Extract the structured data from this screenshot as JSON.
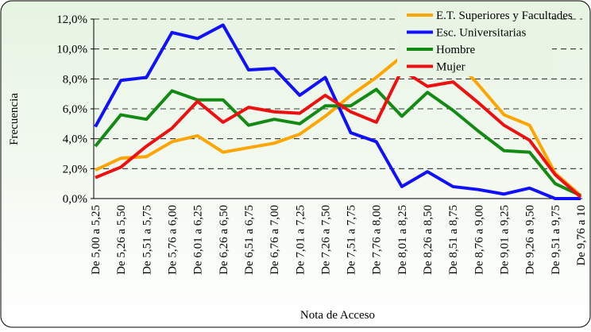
{
  "chart_data": {
    "type": "line",
    "y_label": "Frecuencia",
    "x_label": "Nota de Acceso",
    "categories": [
      "De 5,00 a 5,25",
      "De 5,26 a 5,50",
      "De 5,51 a 5,75",
      "De 5,76 a 6,00",
      "De 6,01 a 6,25",
      "De 6,26 a 6,50",
      "De 6,51 a 6,75",
      "De 6,76 a 7,00",
      "De 7,01 a 7,25",
      "De 7,26 a 7,50",
      "De 7,51 a 7,75",
      "De 7,76 a 8,00",
      "De 8,01 a 8,25",
      "De 8,26 a 8,50",
      "De 8,51 a 8,75",
      "De 8,76 a 9,00",
      "De 9,01 a 9,25",
      "De 9,26 a 9,50",
      "De 9,51 a 9,75",
      "De 9,76 a 10"
    ],
    "series": [
      {
        "name": "E.T. Superiores y Facultades",
        "color": "#ffa500",
        "values": [
          1.9,
          2.7,
          2.8,
          3.8,
          4.2,
          3.1,
          3.4,
          3.7,
          4.3,
          5.5,
          6.9,
          8.1,
          9.5,
          10.3,
          9.5,
          7.6,
          5.6,
          4.9,
          1.7,
          0.2
        ]
      },
      {
        "name": "Esc. Universitarias",
        "color": "#1010ff",
        "values": [
          4.8,
          7.9,
          8.1,
          11.1,
          10.7,
          11.6,
          8.6,
          8.7,
          6.9,
          8.1,
          4.4,
          3.8,
          0.8,
          1.8,
          0.8,
          0.6,
          0.3,
          0.7,
          0,
          0
        ]
      },
      {
        "name": "Hombre",
        "color": "#138a13",
        "values": [
          3.5,
          5.6,
          5.3,
          7.2,
          6.6,
          6.6,
          4.9,
          5.3,
          5.0,
          6.2,
          6.2,
          7.3,
          5.5,
          7.1,
          5.9,
          4.5,
          3.2,
          3.1,
          1.0,
          0.2
        ]
      },
      {
        "name": "Mujer",
        "color": "#ee1010",
        "values": [
          1.4,
          2.1,
          3.5,
          4.7,
          6.5,
          5.1,
          6.1,
          5.8,
          5.7,
          6.9,
          5.8,
          5.1,
          8.6,
          7.5,
          7.8,
          6.4,
          4.9,
          3.9,
          1.6,
          0.1
        ]
      }
    ],
    "ylim": [
      0,
      12
    ],
    "yticks": [
      {
        "value": 0,
        "label": "0,0%"
      },
      {
        "value": 2,
        "label": "2,0%"
      },
      {
        "value": 4,
        "label": "4,0%"
      },
      {
        "value": 6,
        "label": "6,0%"
      },
      {
        "value": 8,
        "label": "8,0%"
      },
      {
        "value": 10,
        "label": "10,0%"
      },
      {
        "value": 12,
        "label": "12,0%"
      }
    ],
    "grid": true
  }
}
